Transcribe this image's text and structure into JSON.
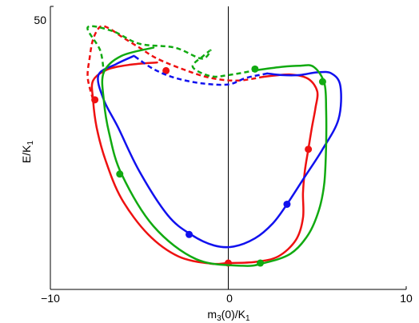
{
  "chart_data": {
    "type": "line",
    "title": "",
    "xlabel": "m3(0)/K1",
    "ylabel": "E/K1",
    "xlim": [
      -10,
      10
    ],
    "ylim": [
      -1.5,
      50
    ],
    "x_ticks": [
      "−10",
      "0",
      "10"
    ],
    "y_ticks": [
      "50"
    ],
    "grid": false,
    "legend": "none",
    "reference_line": {
      "x": 0
    },
    "series": [
      {
        "color": "#ee1111",
        "solid": [
          [
            -4.0,
            39.8
          ],
          [
            -5.5,
            39.4
          ],
          [
            -6.8,
            38.5
          ],
          [
            -7.6,
            36.5
          ],
          [
            -7.6,
            33.0
          ],
          [
            -7.4,
            28.0
          ],
          [
            -6.9,
            22.0
          ],
          [
            -6.0,
            15.0
          ],
          [
            -4.5,
            8.5
          ],
          [
            -2.8,
            4.5
          ],
          [
            -1.0,
            3.2
          ],
          [
            0.0,
            3.3
          ],
          [
            1.5,
            3.5
          ],
          [
            2.8,
            4.5
          ],
          [
            3.8,
            7.5
          ],
          [
            4.2,
            11.5
          ],
          [
            4.2,
            16.0
          ],
          [
            4.3,
            20.0
          ],
          [
            4.5,
            24.0
          ],
          [
            4.7,
            28.0
          ],
          [
            4.9,
            31.5
          ],
          [
            5.0,
            34.5
          ],
          [
            4.5,
            36.8
          ],
          [
            3.5,
            37.6
          ],
          [
            2.0,
            37.2
          ]
        ],
        "dashed": [
          [
            2.0,
            37.2
          ],
          [
            0.5,
            36.5
          ],
          [
            -1.0,
            37.0
          ],
          [
            -2.5,
            38.5
          ],
          [
            -4.0,
            40.5
          ],
          [
            -5.0,
            42.5
          ],
          [
            -6.0,
            44.5
          ],
          [
            -6.7,
            46.0
          ],
          [
            -7.2,
            46.3
          ],
          [
            -7.6,
            44.0
          ],
          [
            -7.8,
            40.5
          ],
          [
            -7.9,
            37.0
          ],
          [
            -7.6,
            33.0
          ]
        ],
        "points": [
          [
            -7.5,
            33.0
          ],
          [
            -3.5,
            38.3
          ],
          [
            4.5,
            24.0
          ],
          [
            0.0,
            3.3
          ]
        ]
      },
      {
        "color": "#1111ee",
        "solid": [
          [
            -5.3,
            41.0
          ],
          [
            -6.3,
            39.5
          ],
          [
            -7.3,
            37.5
          ],
          [
            -7.0,
            33.0
          ],
          [
            -6.2,
            28.0
          ],
          [
            -5.0,
            20.0
          ],
          [
            -3.4,
            12.0
          ],
          [
            -2.1,
            8.5
          ],
          [
            -0.8,
            6.5
          ],
          [
            0.3,
            6.3
          ],
          [
            1.5,
            7.8
          ],
          [
            2.5,
            10.5
          ],
          [
            3.3,
            14.0
          ],
          [
            4.3,
            19.0
          ],
          [
            5.3,
            24.0
          ],
          [
            6.2,
            29.5
          ],
          [
            6.3,
            35.5
          ],
          [
            5.8,
            37.8
          ],
          [
            5.0,
            38.0
          ],
          [
            4.0,
            37.5
          ],
          [
            3.0,
            37.5
          ],
          [
            2.2,
            37.8
          ]
        ],
        "dashed": [
          [
            2.2,
            37.8
          ],
          [
            1.0,
            37.0
          ],
          [
            0.0,
            35.8
          ],
          [
            -1.5,
            36.0
          ],
          [
            -3.0,
            37.0
          ],
          [
            -4.2,
            38.6
          ],
          [
            -5.3,
            41.0
          ]
        ],
        "points": [
          [
            -2.2,
            8.5
          ],
          [
            3.3,
            14.0
          ]
        ]
      },
      {
        "color": "#11aa11",
        "solid": [
          [
            -4.2,
            42.5
          ],
          [
            -6.0,
            41.0
          ],
          [
            -7.0,
            38.0
          ],
          [
            -7.0,
            33.0
          ],
          [
            -6.7,
            27.0
          ],
          [
            -6.0,
            19.5
          ],
          [
            -4.2,
            10.0
          ],
          [
            -1.8,
            4.0
          ],
          [
            0.8,
            2.8
          ],
          [
            2.0,
            3.3
          ],
          [
            3.5,
            5.0
          ],
          [
            4.5,
            8.5
          ],
          [
            5.1,
            13.0
          ],
          [
            5.4,
            18.0
          ],
          [
            5.5,
            25.0
          ],
          [
            5.5,
            31.0
          ],
          [
            5.4,
            36.0
          ],
          [
            4.8,
            39.0
          ],
          [
            4.0,
            39.2
          ],
          [
            3.0,
            39.0
          ],
          [
            1.6,
            38.4
          ]
        ],
        "dashed": [
          [
            1.6,
            38.4
          ],
          [
            0.0,
            37.5
          ],
          [
            -1.0,
            37.3
          ],
          [
            -2.0,
            39.0
          ],
          [
            -1.4,
            41.0
          ],
          [
            -1.0,
            42.0
          ],
          [
            -1.5,
            40.5
          ],
          [
            -3.0,
            42.5
          ],
          [
            -5.0,
            43.2
          ],
          [
            -6.5,
            45.5
          ],
          [
            -7.9,
            46.2
          ],
          [
            -7.2,
            42.0
          ],
          [
            -7.0,
            38.0
          ]
        ],
        "points": [
          [
            -6.1,
            19.5
          ],
          [
            1.5,
            38.6
          ],
          [
            5.3,
            36.3
          ],
          [
            1.8,
            3.3
          ]
        ]
      }
    ]
  }
}
